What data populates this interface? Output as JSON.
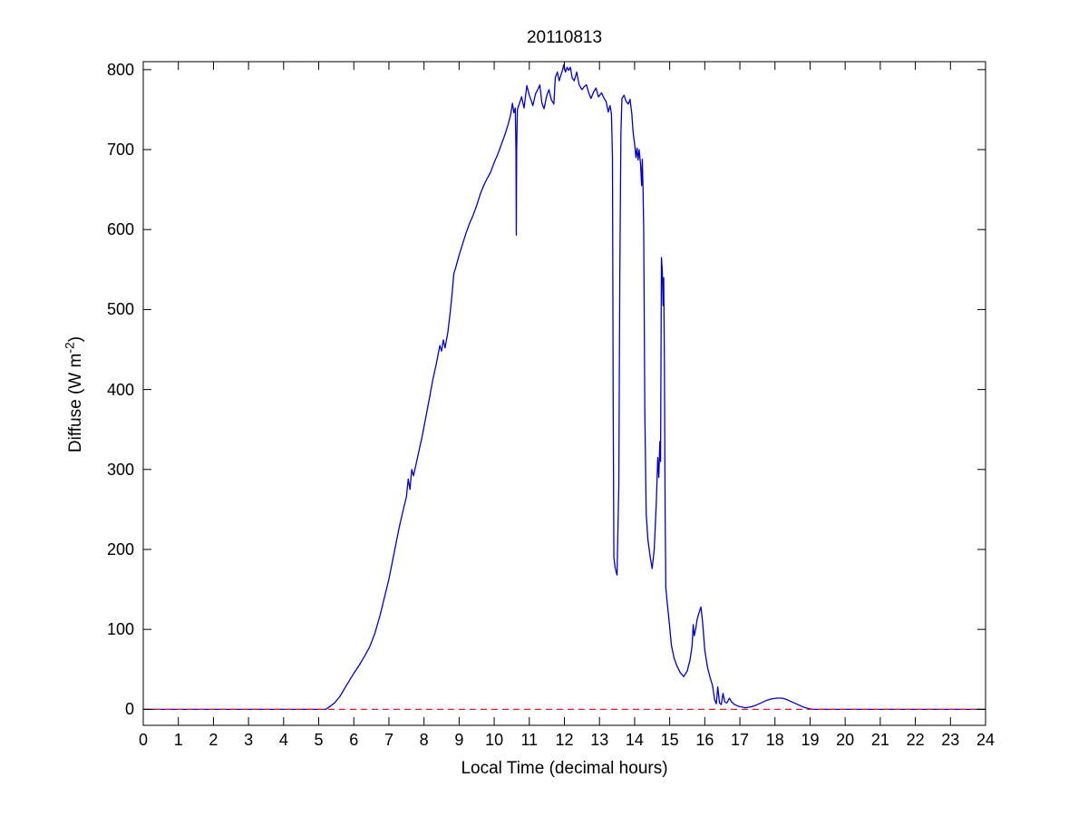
{
  "figure": {
    "background": "#ffffff",
    "axis_color": "#000000"
  },
  "chart_data": {
    "type": "line",
    "title": "20110813",
    "xlabel": "Local Time (decimal hours)",
    "ylabel": "Diffuse (W m⁻²)",
    "ylabel_parts": {
      "main": "Diffuse (W m",
      "sup": "-2",
      "close": ")"
    },
    "xlim": [
      0,
      24
    ],
    "ylim": [
      -20,
      810
    ],
    "xticks": [
      0,
      1,
      2,
      3,
      4,
      5,
      6,
      7,
      8,
      9,
      10,
      11,
      12,
      13,
      14,
      15,
      16,
      17,
      18,
      19,
      20,
      21,
      22,
      23,
      24
    ],
    "yticks": [
      0,
      100,
      200,
      300,
      400,
      500,
      600,
      700,
      800
    ],
    "grid": false,
    "legend": "none",
    "series": [
      {
        "name": "diffuse-irradiance",
        "color": "#0000cd",
        "style": "solid",
        "points": [
          [
            0,
            0
          ],
          [
            0.5,
            0
          ],
          [
            1,
            0
          ],
          [
            1.5,
            0
          ],
          [
            2,
            0
          ],
          [
            2.5,
            0
          ],
          [
            3,
            0
          ],
          [
            3.5,
            0
          ],
          [
            4,
            0
          ],
          [
            4.5,
            0
          ],
          [
            5,
            0
          ],
          [
            5.2,
            0
          ],
          [
            5.3,
            3
          ],
          [
            5.45,
            8
          ],
          [
            5.6,
            16
          ],
          [
            5.75,
            27
          ],
          [
            5.9,
            38
          ],
          [
            6.0,
            45
          ],
          [
            6.15,
            55
          ],
          [
            6.3,
            66
          ],
          [
            6.45,
            78
          ],
          [
            6.6,
            95
          ],
          [
            6.75,
            118
          ],
          [
            6.9,
            145
          ],
          [
            7.0,
            163
          ],
          [
            7.1,
            185
          ],
          [
            7.2,
            207
          ],
          [
            7.3,
            229
          ],
          [
            7.4,
            248
          ],
          [
            7.5,
            266
          ],
          [
            7.55,
            288
          ],
          [
            7.6,
            275
          ],
          [
            7.65,
            300
          ],
          [
            7.7,
            292
          ],
          [
            7.78,
            308
          ],
          [
            7.85,
            322
          ],
          [
            7.95,
            342
          ],
          [
            8.05,
            365
          ],
          [
            8.15,
            388
          ],
          [
            8.25,
            412
          ],
          [
            8.35,
            432
          ],
          [
            8.45,
            455
          ],
          [
            8.5,
            448
          ],
          [
            8.55,
            462
          ],
          [
            8.6,
            452
          ],
          [
            8.68,
            472
          ],
          [
            8.75,
            498
          ],
          [
            8.8,
            520
          ],
          [
            8.85,
            545
          ],
          [
            8.9,
            552
          ],
          [
            9.0,
            568
          ],
          [
            9.1,
            582
          ],
          [
            9.2,
            596
          ],
          [
            9.3,
            608
          ],
          [
            9.4,
            618
          ],
          [
            9.5,
            630
          ],
          [
            9.6,
            644
          ],
          [
            9.7,
            655
          ],
          [
            9.8,
            664
          ],
          [
            9.9,
            672
          ],
          [
            10.0,
            684
          ],
          [
            10.1,
            694
          ],
          [
            10.2,
            706
          ],
          [
            10.3,
            718
          ],
          [
            10.4,
            732
          ],
          [
            10.47,
            744
          ],
          [
            10.52,
            758
          ],
          [
            10.56,
            746
          ],
          [
            10.6,
            752
          ],
          [
            10.62,
            700
          ],
          [
            10.63,
            593
          ],
          [
            10.64,
            700
          ],
          [
            10.66,
            750
          ],
          [
            10.72,
            758
          ],
          [
            10.78,
            766
          ],
          [
            10.85,
            752
          ],
          [
            10.93,
            780
          ],
          [
            11.0,
            768
          ],
          [
            11.05,
            762
          ],
          [
            11.1,
            755
          ],
          [
            11.18,
            770
          ],
          [
            11.25,
            776
          ],
          [
            11.3,
            781
          ],
          [
            11.36,
            758
          ],
          [
            11.42,
            751
          ],
          [
            11.5,
            768
          ],
          [
            11.56,
            775
          ],
          [
            11.63,
            762
          ],
          [
            11.7,
            757
          ],
          [
            11.74,
            790
          ],
          [
            11.8,
            797
          ],
          [
            11.85,
            786
          ],
          [
            11.9,
            793
          ],
          [
            11.95,
            800
          ],
          [
            11.98,
            806
          ],
          [
            12.03,
            797
          ],
          [
            12.08,
            803
          ],
          [
            12.12,
            799
          ],
          [
            12.17,
            803
          ],
          [
            12.22,
            790
          ],
          [
            12.28,
            786
          ],
          [
            12.35,
            797
          ],
          [
            12.42,
            781
          ],
          [
            12.5,
            775
          ],
          [
            12.57,
            779
          ],
          [
            12.63,
            781
          ],
          [
            12.7,
            770
          ],
          [
            12.76,
            764
          ],
          [
            12.83,
            772
          ],
          [
            12.9,
            777
          ],
          [
            12.97,
            766
          ],
          [
            13.06,
            771
          ],
          [
            13.12,
            765
          ],
          [
            13.19,
            760
          ],
          [
            13.25,
            747
          ],
          [
            13.3,
            755
          ],
          [
            13.34,
            745
          ],
          [
            13.37,
            690
          ],
          [
            13.39,
            380
          ],
          [
            13.41,
            190
          ],
          [
            13.45,
            176
          ],
          [
            13.5,
            168
          ],
          [
            13.55,
            280
          ],
          [
            13.58,
            550
          ],
          [
            13.61,
            720
          ],
          [
            13.64,
            764
          ],
          [
            13.7,
            768
          ],
          [
            13.76,
            760
          ],
          [
            13.82,
            757
          ],
          [
            13.87,
            763
          ],
          [
            13.92,
            745
          ],
          [
            13.96,
            721
          ],
          [
            14.0,
            707
          ],
          [
            14.04,
            690
          ],
          [
            14.07,
            702
          ],
          [
            14.1,
            687
          ],
          [
            14.13,
            700
          ],
          [
            14.17,
            682
          ],
          [
            14.2,
            655
          ],
          [
            14.22,
            688
          ],
          [
            14.24,
            652
          ],
          [
            14.26,
            600
          ],
          [
            14.29,
            380
          ],
          [
            14.33,
            245
          ],
          [
            14.38,
            212
          ],
          [
            14.44,
            192
          ],
          [
            14.5,
            176
          ],
          [
            14.56,
            200
          ],
          [
            14.62,
            260
          ],
          [
            14.66,
            315
          ],
          [
            14.69,
            290
          ],
          [
            14.72,
            335
          ],
          [
            14.74,
            310
          ],
          [
            14.765,
            565
          ],
          [
            14.79,
            548
          ],
          [
            14.81,
            505
          ],
          [
            14.83,
            540
          ],
          [
            14.85,
            430
          ],
          [
            14.87,
            250
          ],
          [
            14.89,
            152
          ],
          [
            14.93,
            133
          ],
          [
            14.98,
            112
          ],
          [
            15.05,
            80
          ],
          [
            15.12,
            65
          ],
          [
            15.2,
            55
          ],
          [
            15.3,
            46
          ],
          [
            15.4,
            41
          ],
          [
            15.5,
            48
          ],
          [
            15.58,
            62
          ],
          [
            15.64,
            80
          ],
          [
            15.67,
            106
          ],
          [
            15.7,
            92
          ],
          [
            15.74,
            100
          ],
          [
            15.78,
            112
          ],
          [
            15.83,
            120
          ],
          [
            15.89,
            128
          ],
          [
            15.94,
            108
          ],
          [
            16.0,
            74
          ],
          [
            16.08,
            52
          ],
          [
            16.15,
            40
          ],
          [
            16.22,
            30
          ],
          [
            16.28,
            12
          ],
          [
            16.33,
            7
          ],
          [
            16.37,
            28
          ],
          [
            16.42,
            8
          ],
          [
            16.47,
            6
          ],
          [
            16.52,
            20
          ],
          [
            16.57,
            9
          ],
          [
            16.63,
            8
          ],
          [
            16.7,
            14
          ],
          [
            16.77,
            9
          ],
          [
            16.85,
            6
          ],
          [
            16.95,
            4
          ],
          [
            17.05,
            3
          ],
          [
            17.15,
            2
          ],
          [
            17.3,
            3
          ],
          [
            17.45,
            5
          ],
          [
            17.6,
            8
          ],
          [
            17.75,
            11
          ],
          [
            17.9,
            13
          ],
          [
            18.05,
            14
          ],
          [
            18.2,
            14
          ],
          [
            18.35,
            12
          ],
          [
            18.5,
            9
          ],
          [
            18.65,
            6
          ],
          [
            18.8,
            3
          ],
          [
            18.95,
            1
          ],
          [
            19.1,
            0
          ],
          [
            19.5,
            0
          ],
          [
            20,
            0
          ],
          [
            20.5,
            0
          ],
          [
            21,
            0
          ],
          [
            21.5,
            0
          ],
          [
            22,
            0
          ],
          [
            22.5,
            0
          ],
          [
            23,
            0
          ],
          [
            23.5,
            0
          ],
          [
            24,
            0
          ]
        ]
      },
      {
        "name": "zero-reference-line",
        "color": "#cc2222",
        "style": "dashed",
        "points": [
          [
            0,
            0
          ],
          [
            24,
            0
          ]
        ]
      }
    ]
  }
}
